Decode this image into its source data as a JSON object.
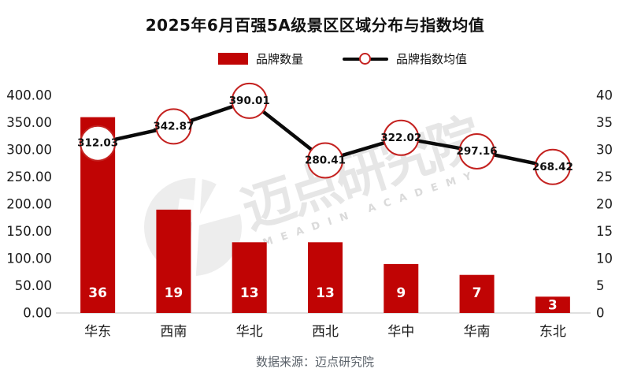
{
  "title": "2025年6月百强5A级景区区域分布与指数均值",
  "legend": [
    {
      "label": "品牌数量"
    },
    {
      "label": "品牌指数均值"
    }
  ],
  "watermark": {
    "cn": "迈点研究院",
    "en": "MEADIN ACADEMY"
  },
  "footer": {
    "source": "数据来源：迈点研究院"
  },
  "colors": {
    "bar_red": "#c00404",
    "line_black": "#0a0a0a",
    "marker_ring_red": "#c42220",
    "marker_fill": "#ffffff",
    "axis_text": "#1a1a1a",
    "bar_label_white": "#ffffff",
    "axis_line_gray": "#d6d6d6",
    "footer_gray": "#5a6169"
  },
  "chart_data": {
    "type": "bar",
    "subtype": "bar+line combo",
    "categories": [
      "华东",
      "西南",
      "华北",
      "西北",
      "华中",
      "华南",
      "东北"
    ],
    "series": [
      {
        "name": "品牌数量",
        "type": "bar",
        "axis": "right",
        "values": [
          36,
          19,
          13,
          13,
          9,
          7,
          3
        ],
        "color": "#c00404"
      },
      {
        "name": "品牌指数均值",
        "type": "line",
        "axis": "left",
        "values": [
          312.03,
          342.87,
          390.01,
          280.41,
          322.02,
          297.16,
          268.42
        ],
        "line_color": "#0a0a0a",
        "marker_fill": "#ffffff",
        "marker_stroke": "#c42220",
        "value_decimals": 2
      }
    ],
    "left_axis": {
      "min": 0,
      "max": 400,
      "ticks": [
        "400.00",
        "350.00",
        "300.00",
        "250.00",
        "200.00",
        "150.00",
        "100.00",
        "50.00",
        "0.00"
      ]
    },
    "right_axis": {
      "min": 0,
      "max": 40,
      "ticks": [
        "40",
        "35",
        "30",
        "25",
        "20",
        "15",
        "10",
        "5",
        "0"
      ]
    },
    "grid": false,
    "legend_position": "top",
    "title": "2025年6月百强5A级景区区域分布与指数均值",
    "xlabel": "",
    "ylabel_left": "",
    "ylabel_right": ""
  }
}
